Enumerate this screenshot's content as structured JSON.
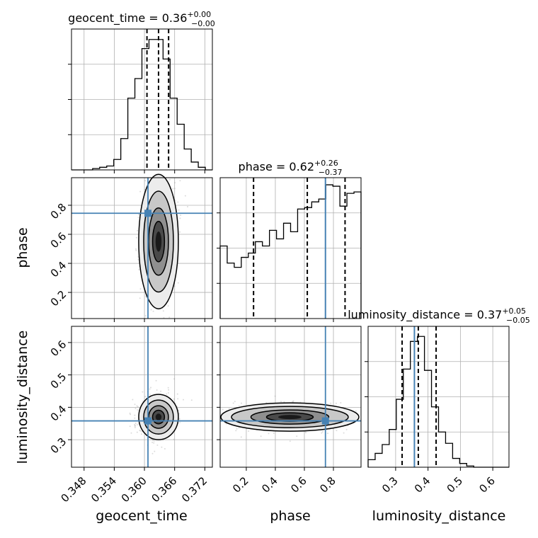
{
  "chart_data": {
    "type": "corner",
    "parameters": [
      "geocent_time",
      "phase",
      "luminosity_distance"
    ],
    "truth_color": "#4682b4",
    "hist_color": "#000000",
    "grid": true,
    "titles": [
      {
        "param": "geocent_time",
        "prefix": "geocent_time = ",
        "median": "0.36",
        "plus": "+0.00",
        "minus": "−0.00"
      },
      {
        "param": "phase",
        "prefix": "phase = ",
        "median": "0.62",
        "plus": "+0.26",
        "minus": "−0.37"
      },
      {
        "param": "luminosity_distance",
        "prefix": "luminosity_distance = ",
        "median": "0.37",
        "plus": "+0.05",
        "minus": "−0.05"
      }
    ],
    "axes": {
      "geocent_time": {
        "label": "geocent_time",
        "range": [
          0.3455,
          0.3735
        ],
        "ticks": [
          0.348,
          0.354,
          0.36,
          0.366,
          0.372
        ],
        "tick_labels": [
          "0.348",
          "0.354",
          "0.360",
          "0.366",
          "0.372"
        ]
      },
      "phase": {
        "label": "phase",
        "range": [
          0.02,
          0.99
        ],
        "ticks": [
          0.2,
          0.4,
          0.6,
          0.8
        ],
        "tick_labels": [
          "0.2",
          "0.4",
          "0.6",
          "0.8"
        ]
      },
      "luminosity_distance": {
        "label": "luminosity_distance",
        "range": [
          0.215,
          0.65
        ],
        "ticks": [
          0.3,
          0.4,
          0.5,
          0.6
        ],
        "tick_labels": [
          "0.3",
          "0.4",
          "0.5",
          "0.6"
        ]
      }
    },
    "truths": {
      "geocent_time": 0.3607,
      "phase": 0.745,
      "luminosity_distance": 0.358
    },
    "quantiles": {
      "geocent_time": [
        0.3605,
        0.3628,
        0.3648
      ],
      "phase": [
        0.25,
        0.62,
        0.88
      ],
      "luminosity_distance": [
        0.32,
        0.37,
        0.425
      ]
    },
    "histograms": {
      "geocent_time": {
        "bin_edges": [
          0.3455,
          0.3469,
          0.3483,
          0.3497,
          0.3511,
          0.3525,
          0.3539,
          0.3553,
          0.3567,
          0.3581,
          0.3595,
          0.3609,
          0.3623,
          0.3637,
          0.3651,
          0.3665,
          0.3679,
          0.3693,
          0.3707,
          0.3721,
          0.3735
        ],
        "counts": [
          0,
          0,
          0,
          1,
          2,
          3,
          8,
          24,
          55,
          70,
          93,
          100,
          100,
          85,
          55,
          35,
          16,
          6,
          2,
          0
        ],
        "ymax": 108
      },
      "phase": {
        "bin_edges": [
          0.02,
          0.0685,
          0.117,
          0.1655,
          0.214,
          0.2625,
          0.311,
          0.3595,
          0.408,
          0.4565,
          0.505,
          0.5535,
          0.602,
          0.6505,
          0.699,
          0.7475,
          0.796,
          0.8445,
          0.893,
          0.9415,
          0.99
        ],
        "counts": [
          0.51,
          0.39,
          0.36,
          0.43,
          0.46,
          0.54,
          0.51,
          0.62,
          0.56,
          0.67,
          0.61,
          0.77,
          0.78,
          0.82,
          0.84,
          0.94,
          0.93,
          0.79,
          0.88,
          0.89
        ],
        "ymax": 0.99
      },
      "luminosity_distance": {
        "bin_edges": [
          0.215,
          0.23675,
          0.2585,
          0.28025,
          0.302,
          0.32375,
          0.3455,
          0.36725,
          0.389,
          0.41075,
          0.4325,
          0.45425,
          0.476,
          0.49775,
          0.5195,
          0.54125,
          0.563,
          0.58475,
          0.6065,
          0.62825,
          0.65
        ],
        "counts": [
          6,
          11,
          18,
          30,
          54,
          78,
          100,
          104,
          77,
          48,
          28,
          19,
          7,
          3,
          1,
          0,
          0,
          0,
          0,
          0
        ],
        "ymax": 112
      }
    }
  }
}
